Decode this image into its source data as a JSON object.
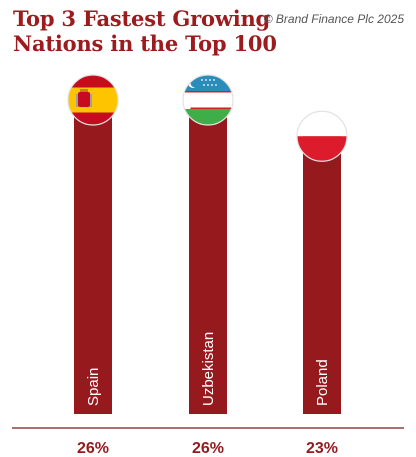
{
  "title_line1": "Top 3 Fastest Growing",
  "title_line2": "Nations in the Top 100",
  "copyright": "© Brand Finance Plc 2025",
  "colors": {
    "bar": "#961a1d",
    "title": "#9b1b1e",
    "axis": "#7a1a1c",
    "label": "#ffffff"
  },
  "chart_data": {
    "type": "bar",
    "categories": [
      "Spain",
      "Uzbekistan",
      "Poland"
    ],
    "values": [
      26,
      26,
      23
    ],
    "value_labels": [
      "26%",
      "26%",
      "23%"
    ],
    "flags": [
      "spain-flag-icon",
      "uzbekistan-flag-icon",
      "poland-flag-icon"
    ],
    "ylim": [
      0,
      26
    ],
    "grid": false,
    "legend": "none"
  }
}
